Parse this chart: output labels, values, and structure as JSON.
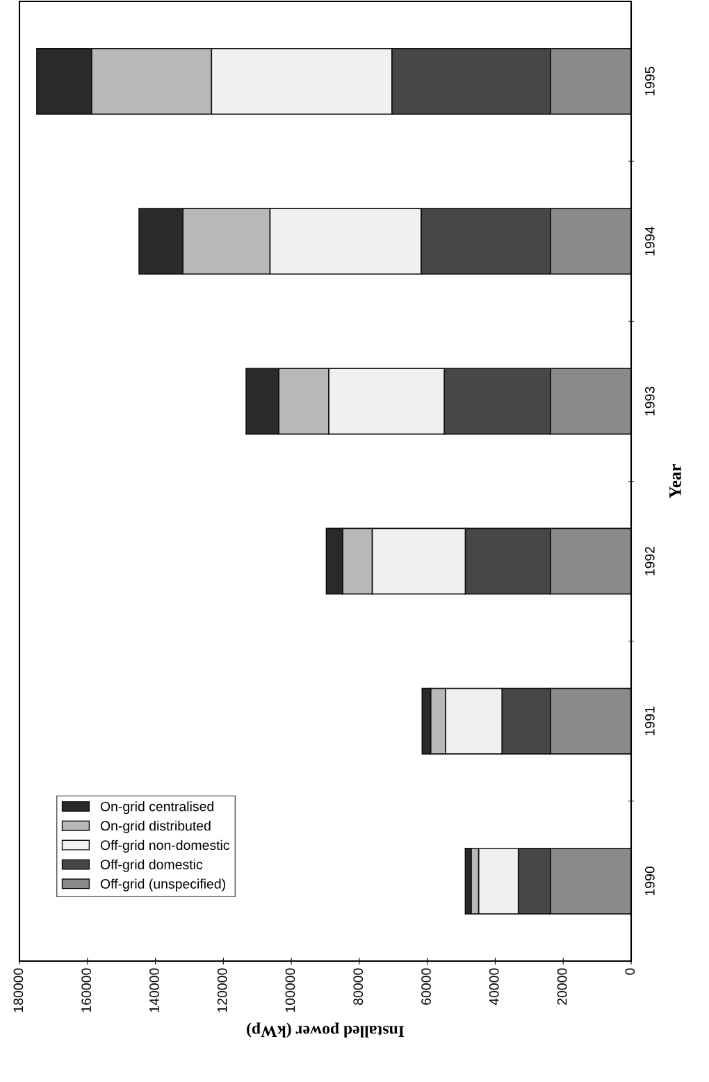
{
  "chart_data": {
    "type": "bar",
    "orientation": "horizontal",
    "stacked": true,
    "xlabel": "Installed power (kWp)",
    "ylabel": "Year",
    "categories": [
      "1995",
      "1994",
      "1993",
      "1992",
      "1991",
      "1990"
    ],
    "series": [
      {
        "name": "Off-grid (unspecified)",
        "color": "#8a8a8a",
        "values": [
          23700,
          23700,
          23700,
          23700,
          23700,
          23700
        ]
      },
      {
        "name": "Off-grid domestic",
        "color": "#474747",
        "values": [
          46700,
          38100,
          31300,
          25100,
          14300,
          9500
        ]
      },
      {
        "name": "Off-grid non-domestic",
        "color": "#f0f0f0",
        "values": [
          53100,
          44500,
          34000,
          27400,
          16600,
          11700
        ]
      },
      {
        "name": "On-grid distributed",
        "color": "#b8b8b8",
        "values": [
          35300,
          25600,
          14700,
          8700,
          4400,
          2200
        ]
      },
      {
        "name": "On-grid centralised",
        "color": "#2a2a2a",
        "values": [
          16100,
          12900,
          9600,
          4800,
          2500,
          1700
        ]
      }
    ],
    "xlim": [
      180000,
      0
    ],
    "xticks": [
      0,
      20000,
      40000,
      60000,
      80000,
      100000,
      120000,
      140000,
      160000,
      180000
    ],
    "legend": "bottom left",
    "grid": false
  }
}
